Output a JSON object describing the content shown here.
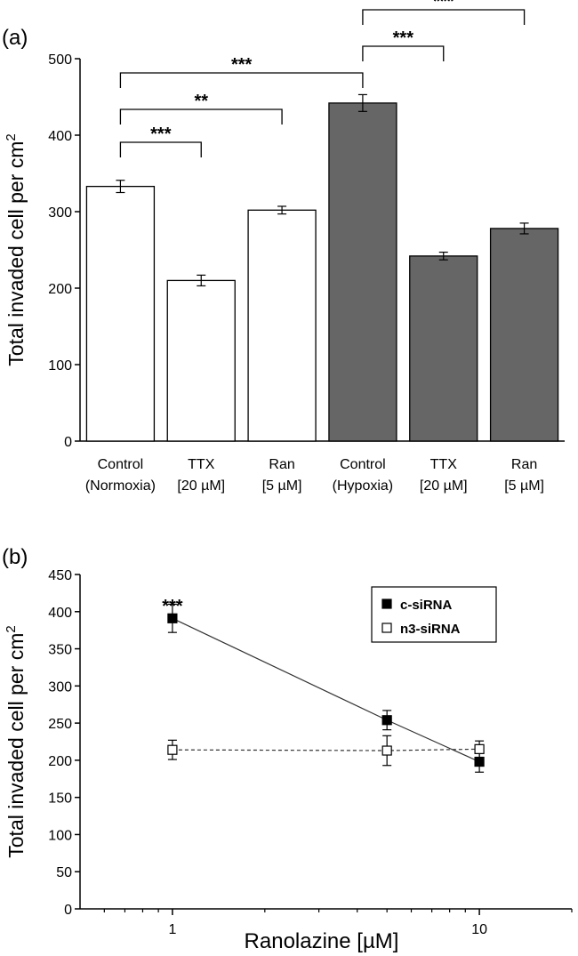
{
  "chart_data": [
    {
      "panel_label": "(a)",
      "type": "bar",
      "ylabel": "Total invaded cell per cm",
      "ylabel_sup": "2",
      "ylim": [
        0,
        500
      ],
      "yticks": [
        "0",
        "100",
        "200",
        "300",
        "400",
        "500"
      ],
      "categories": [
        {
          "line1": "Control",
          "line2": "(Normoxia)"
        },
        {
          "line1": "TTX",
          "line2": "[20 µM]"
        },
        {
          "line1": "Ran",
          "line2": "[5 µM]"
        },
        {
          "line1": "Control",
          "line2": "(Hypoxia)"
        },
        {
          "line1": "TTX",
          "line2": "[20 µM]"
        },
        {
          "line1": "Ran",
          "line2": "[5 µM]"
        }
      ],
      "values": [
        333,
        210,
        302,
        442,
        242,
        278
      ],
      "errors": [
        8,
        7,
        5,
        11,
        5,
        7
      ],
      "bar_colors": [
        "#ffffff",
        "#ffffff",
        "#ffffff",
        "#666666",
        "#666666",
        "#666666"
      ],
      "significance": [
        {
          "from": 0,
          "to": 1,
          "label": "***"
        },
        {
          "from": 0,
          "to": 2,
          "label": "**"
        },
        {
          "from": 0,
          "to": 3,
          "label": "***"
        },
        {
          "from": 3,
          "to": 4,
          "label": "***"
        },
        {
          "from": 3,
          "to": 5,
          "label": "***"
        }
      ]
    },
    {
      "panel_label": "(b)",
      "type": "line",
      "xlabel": "Ranolazine [µM]",
      "xscale": "log",
      "xlim": [
        0.5,
        20
      ],
      "xticks": [
        "1",
        "10"
      ],
      "ylabel": "Total invaded cell per cm",
      "ylabel_sup": "2",
      "ylim": [
        0,
        450
      ],
      "yticks": [
        "0",
        "50",
        "100",
        "150",
        "200",
        "250",
        "300",
        "350",
        "400",
        "450"
      ],
      "annotation": "***",
      "legend_position": "top-right",
      "series": [
        {
          "name": "c-siRNA",
          "marker": "filled-square",
          "line": "solid",
          "x": [
            1,
            5,
            10
          ],
          "y": [
            391,
            254,
            198
          ],
          "err": [
            19,
            13,
            14
          ]
        },
        {
          "name": "n3-siRNA",
          "marker": "open-square",
          "line": "dashed",
          "x": [
            1,
            5,
            10
          ],
          "y": [
            214,
            213,
            215
          ],
          "err": [
            13,
            20,
            11
          ]
        }
      ]
    }
  ]
}
